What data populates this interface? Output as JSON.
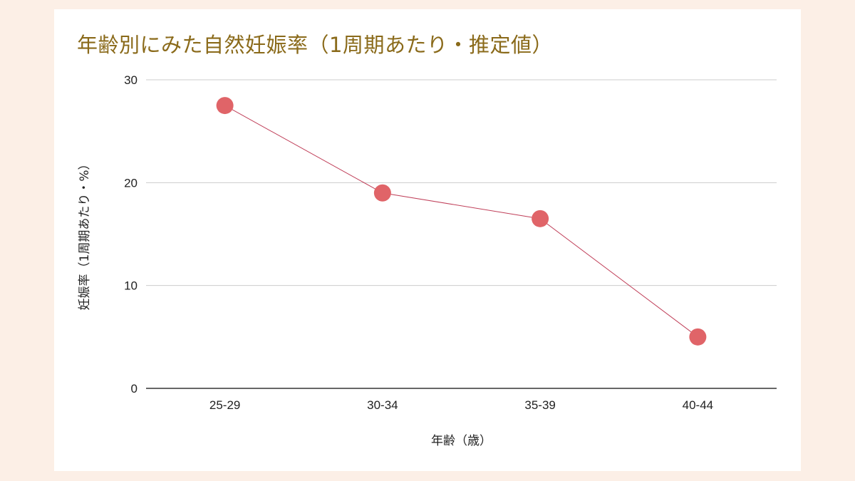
{
  "chart_data": {
    "type": "line",
    "title": "年齢別にみた自然妊娠率（1周期あたり・推定値）",
    "xlabel": "年齢（歳）",
    "ylabel": "妊娠率（1周期あたり・%）",
    "categories": [
      "25-29",
      "30-34",
      "35-39",
      "40-44"
    ],
    "series": [
      {
        "values": [
          27.5,
          19,
          16.5,
          5
        ]
      }
    ],
    "ylim": [
      0,
      30
    ],
    "yticks": [
      "0",
      "10",
      "20",
      "30"
    ],
    "grid": true,
    "legend": "none",
    "colors": {
      "marker": "#e06468",
      "line": "#c0405a",
      "title": "#8a6a1a",
      "grid": "#cccccc",
      "axis": "#333333"
    }
  }
}
